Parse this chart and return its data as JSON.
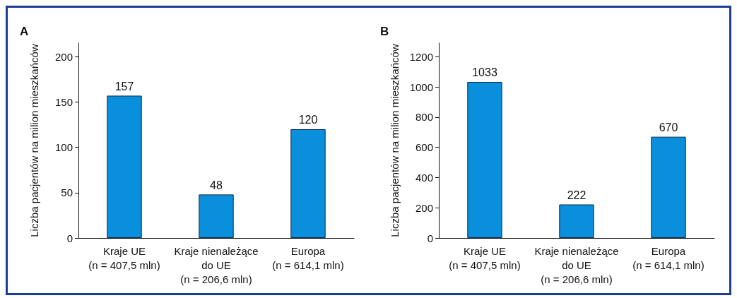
{
  "chart_data": [
    {
      "type": "bar",
      "title": "A",
      "ylabel": "Liczba pacjentów na milion mieszkańców",
      "categories": [
        "Kraje UE\n(n = 407,5 mln)",
        "Kraje nienależące\ndo UE\n(n = 206,6 mln)",
        "Europa\n(n = 614,1 mln)"
      ],
      "values": [
        157,
        48,
        120
      ],
      "color": "#0a8fdc",
      "ylim": [
        0,
        215
      ],
      "yticks": [
        0,
        50,
        100,
        150,
        200
      ],
      "data_labels": true,
      "grid": false
    },
    {
      "type": "bar",
      "title": "B",
      "ylabel": "Liczba pacjentów na milion mieszkańców",
      "categories": [
        "Kraje UE\n(n = 407,5 mln)",
        "Kraje nienależące\ndo UE\n(n = 206,6 mln)",
        "Europa\n(n = 614,1 mln)"
      ],
      "values": [
        1033,
        222,
        670
      ],
      "color": "#0a8fdc",
      "ylim": [
        0,
        1290
      ],
      "yticks": [
        0,
        200,
        400,
        600,
        800,
        1000,
        1200
      ],
      "data_labels": true,
      "grid": false
    }
  ]
}
